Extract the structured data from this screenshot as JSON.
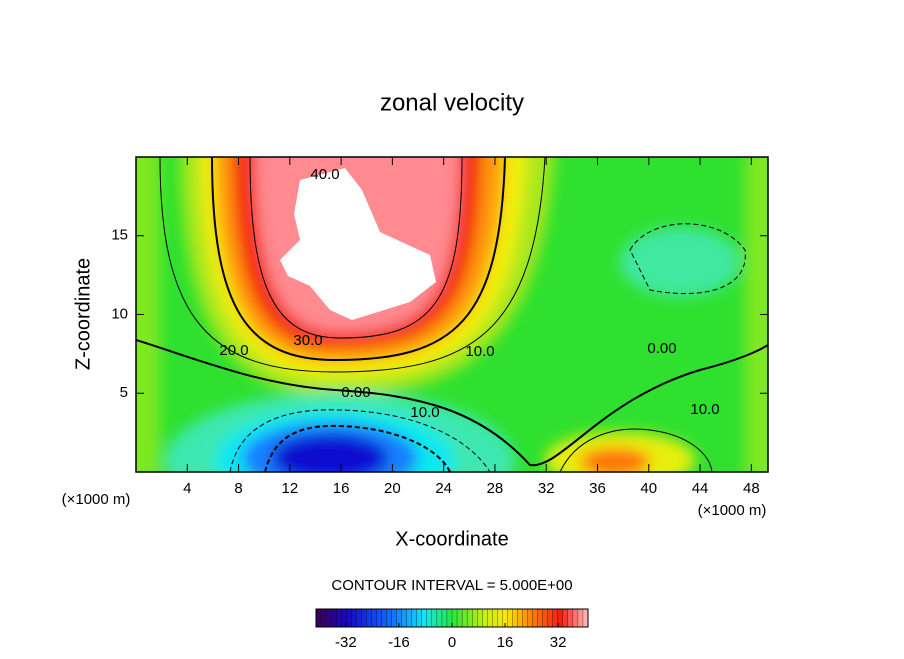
{
  "chart_data": {
    "type": "contour",
    "title": "zonal velocity",
    "xlabel": "X-coordinate",
    "ylabel": "Z-coordinate",
    "xunit": "(×1000 m)",
    "yunit": "(×1000 m)",
    "xlim": [
      0,
      49.3
    ],
    "xticks": [
      4,
      8,
      12,
      16,
      20,
      24,
      28,
      32,
      36,
      40,
      44,
      48
    ],
    "ylim": [
      0,
      20
    ],
    "yticks": [
      5,
      10,
      15
    ],
    "contour_labels": [
      "40.0",
      "30.0",
      "20.0",
      "10.0",
      "0.00",
      "10.0",
      "0.00",
      "10.0"
    ],
    "contour_interval": "CONTOUR INTERVAL = 5.000E+00",
    "colorbar": {
      "lim": [
        -41,
        41
      ],
      "ticks": [
        -32,
        -16,
        0,
        16,
        32
      ]
    }
  }
}
